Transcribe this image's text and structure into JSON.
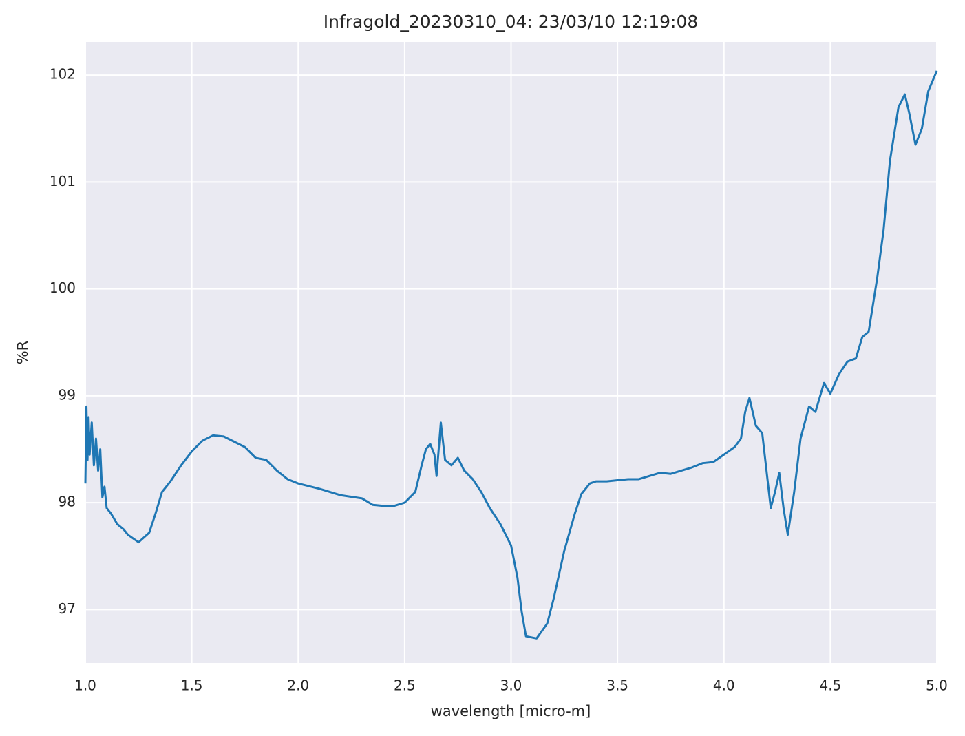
{
  "chart_data": {
    "type": "line",
    "title": "Infragold_20230310_04:  23/03/10 12:19:08",
    "x_label": "wavelength [micro-m]",
    "y_label": "%R",
    "xlim": [
      1.0,
      5.0
    ],
    "ylim": [
      96.5,
      102.31
    ],
    "xticks": [
      {
        "value": 1,
        "label": "1.0"
      },
      1.5,
      {
        "value": 2,
        "label": "2.0"
      },
      2.5,
      {
        "value": 3,
        "label": "3.0"
      },
      3.5,
      {
        "value": 4,
        "label": "4.0"
      },
      4.5,
      {
        "value": 5,
        "label": "5.0"
      }
    ],
    "yticks": [
      97,
      98,
      99,
      100,
      101,
      102
    ],
    "grid": true,
    "x": [
      1.0,
      1.005,
      1.01,
      1.015,
      1.02,
      1.03,
      1.04,
      1.05,
      1.06,
      1.07,
      1.08,
      1.09,
      1.1,
      1.12,
      1.15,
      1.18,
      1.2,
      1.25,
      1.3,
      1.33,
      1.36,
      1.4,
      1.45,
      1.5,
      1.55,
      1.6,
      1.65,
      1.7,
      1.75,
      1.8,
      1.85,
      1.9,
      1.95,
      2.0,
      2.1,
      2.2,
      2.3,
      2.35,
      2.4,
      2.45,
      2.5,
      2.55,
      2.58,
      2.6,
      2.62,
      2.64,
      2.65,
      2.67,
      2.69,
      2.72,
      2.75,
      2.78,
      2.82,
      2.86,
      2.9,
      2.95,
      3.0,
      3.03,
      3.05,
      3.07,
      3.12,
      3.17,
      3.2,
      3.25,
      3.3,
      3.33,
      3.37,
      3.4,
      3.45,
      3.5,
      3.55,
      3.6,
      3.65,
      3.7,
      3.75,
      3.8,
      3.85,
      3.9,
      3.95,
      4.0,
      4.05,
      4.08,
      4.1,
      4.12,
      4.15,
      4.18,
      4.2,
      4.22,
      4.24,
      4.26,
      4.28,
      4.3,
      4.33,
      4.36,
      4.4,
      4.43,
      4.47,
      4.5,
      4.54,
      4.58,
      4.62,
      4.65,
      4.68,
      4.72,
      4.75,
      4.78,
      4.82,
      4.85,
      4.87,
      4.9,
      4.93,
      4.96,
      5.0
    ],
    "series": [
      {
        "name": "%R",
        "color": "#1f77b4",
        "values": [
          98.18,
          98.9,
          98.4,
          98.8,
          98.45,
          98.75,
          98.35,
          98.6,
          98.3,
          98.5,
          98.05,
          98.15,
          97.95,
          97.9,
          97.8,
          97.75,
          97.7,
          97.63,
          97.72,
          97.9,
          98.1,
          98.2,
          98.35,
          98.48,
          98.58,
          98.63,
          98.62,
          98.57,
          98.52,
          98.42,
          98.4,
          98.3,
          98.22,
          98.18,
          98.13,
          98.07,
          98.04,
          97.98,
          97.97,
          97.97,
          98.0,
          98.1,
          98.35,
          98.5,
          98.55,
          98.45,
          98.25,
          98.75,
          98.4,
          98.35,
          98.42,
          98.3,
          98.22,
          98.1,
          97.95,
          97.8,
          97.6,
          97.3,
          96.98,
          96.75,
          96.73,
          96.87,
          97.1,
          97.55,
          97.9,
          98.08,
          98.18,
          98.2,
          98.2,
          98.21,
          98.22,
          98.22,
          98.25,
          98.28,
          98.27,
          98.3,
          98.33,
          98.37,
          98.38,
          98.45,
          98.52,
          98.6,
          98.85,
          98.98,
          98.72,
          98.65,
          98.3,
          97.95,
          98.1,
          98.28,
          97.95,
          97.7,
          98.1,
          98.6,
          98.9,
          98.85,
          99.12,
          99.02,
          99.2,
          99.32,
          99.35,
          99.55,
          99.6,
          100.1,
          100.55,
          101.2,
          101.7,
          101.82,
          101.65,
          101.35,
          101.5,
          101.85,
          102.04
        ]
      }
    ]
  }
}
